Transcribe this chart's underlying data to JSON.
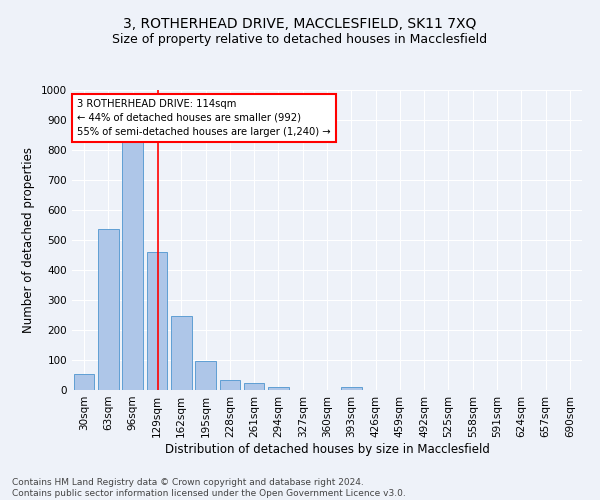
{
  "title": "3, ROTHERHEAD DRIVE, MACCLESFIELD, SK11 7XQ",
  "subtitle": "Size of property relative to detached houses in Macclesfield",
  "xlabel": "Distribution of detached houses by size in Macclesfield",
  "ylabel": "Number of detached properties",
  "bar_labels": [
    "30sqm",
    "63sqm",
    "96sqm",
    "129sqm",
    "162sqm",
    "195sqm",
    "228sqm",
    "261sqm",
    "294sqm",
    "327sqm",
    "360sqm",
    "393sqm",
    "426sqm",
    "459sqm",
    "492sqm",
    "525sqm",
    "558sqm",
    "591sqm",
    "624sqm",
    "657sqm",
    "690sqm"
  ],
  "bar_values": [
    55,
    537,
    830,
    461,
    246,
    98,
    33,
    23,
    11,
    0,
    0,
    10,
    0,
    0,
    0,
    0,
    0,
    0,
    0,
    0,
    0
  ],
  "bar_color": "#aec6e8",
  "bar_edge_color": "#5f9fd4",
  "vline_color": "red",
  "annotation_text": "3 ROTHERHEAD DRIVE: 114sqm\n← 44% of detached houses are smaller (992)\n55% of semi-detached houses are larger (1,240) →",
  "annotation_box_color": "white",
  "annotation_box_edge": "red",
  "ylim": [
    0,
    1000
  ],
  "yticks": [
    0,
    100,
    200,
    300,
    400,
    500,
    600,
    700,
    800,
    900,
    1000
  ],
  "footnote": "Contains HM Land Registry data © Crown copyright and database right 2024.\nContains public sector information licensed under the Open Government Licence v3.0.",
  "bg_color": "#eef2f9",
  "title_fontsize": 10,
  "subtitle_fontsize": 9,
  "axis_label_fontsize": 8.5,
  "tick_fontsize": 7.5,
  "footnote_fontsize": 6.5
}
